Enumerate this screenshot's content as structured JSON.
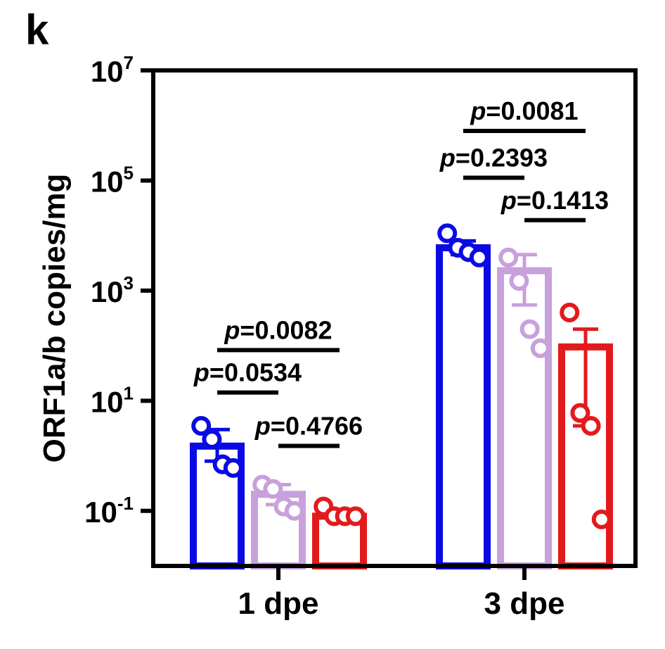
{
  "panel_label": "k",
  "chart_data": {
    "type": "bar",
    "yscale": "log",
    "ylim_exp": [
      -2,
      7
    ],
    "ylabel": "ORF1a/b copies/mg",
    "yticks": [
      {
        "base": "10",
        "exp": "-1"
      },
      {
        "base": "10",
        "exp": "1"
      },
      {
        "base": "10",
        "exp": "3"
      },
      {
        "base": "10",
        "exp": "5"
      },
      {
        "base": "10",
        "exp": "7"
      }
    ],
    "categories": [
      "1 dpe",
      "3 dpe"
    ],
    "colors": [
      "#0a0ae6",
      "#c8a0dc",
      "#e31a1c"
    ],
    "series": [
      {
        "values": [
          1.5,
          6000
        ],
        "sem_upper": [
          3.0,
          8000
        ],
        "sem_lower": [
          0.8,
          4500
        ],
        "points": [
          [
            3.5,
            2.0,
            0.7,
            0.6
          ],
          [
            11000,
            6000,
            5000,
            4000
          ]
        ]
      },
      {
        "values": [
          0.2,
          2300
        ],
        "sem_upper": [
          0.3,
          4500
        ],
        "sem_lower": [
          0.13,
          550
        ],
        "points": [
          [
            0.3,
            0.25,
            0.12,
            0.1
          ],
          [
            4000,
            1500,
            200,
            90
          ]
        ]
      },
      {
        "values": [
          0.08,
          95
        ],
        "sem_upper": [
          0.085,
          200
        ],
        "sem_lower": [
          0.075,
          3.5
        ],
        "points": [
          [
            0.12,
            0.08,
            0.08,
            0.08
          ],
          [
            400,
            6,
            3.5,
            0.07
          ]
        ]
      }
    ],
    "comparisons": [
      {
        "group": 0,
        "from": 0,
        "to": 1,
        "exp": 1.15,
        "p_label": "p",
        "p_value": "=0.0534"
      },
      {
        "group": 0,
        "from": 0,
        "to": 2,
        "exp": 1.92,
        "p_label": "p",
        "p_value": "=0.0082"
      },
      {
        "group": 0,
        "from": 1,
        "to": 2,
        "exp": 0.18,
        "p_label": "p",
        "p_value": "=0.4766"
      },
      {
        "group": 1,
        "from": 0,
        "to": 1,
        "exp": 5.05,
        "p_label": "p",
        "p_value": "=0.2393"
      },
      {
        "group": 1,
        "from": 0,
        "to": 2,
        "exp": 5.9,
        "p_label": "p",
        "p_value": "=0.0081"
      },
      {
        "group": 1,
        "from": 1,
        "to": 2,
        "exp": 4.28,
        "p_label": "p",
        "p_value": "=0.1413"
      }
    ]
  }
}
